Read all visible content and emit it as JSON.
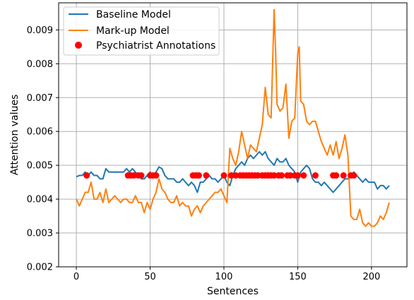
{
  "chart_data": {
    "type": "line",
    "title": "",
    "xlabel": "Sentences",
    "ylabel": "Attention values",
    "xlim": [
      -12,
      224
    ],
    "ylim": [
      0.002,
      0.0098
    ],
    "xticks": [
      0,
      50,
      100,
      150,
      200
    ],
    "xtick_labels": [
      "0",
      "50",
      "100",
      "150",
      "200"
    ],
    "yticks": [
      0.002,
      0.003,
      0.004,
      0.005,
      0.006,
      0.007,
      0.008,
      0.009
    ],
    "ytick_labels": [
      "0.002",
      "0.003",
      "0.004",
      "0.005",
      "0.006",
      "0.007",
      "0.008",
      "0.009"
    ],
    "grid": true,
    "legend_position": "upper-left",
    "series": [
      {
        "name": "Baseline Model",
        "type": "line",
        "color": "#1f77b4",
        "x": [
          0,
          2,
          4,
          6,
          8,
          10,
          12,
          14,
          16,
          18,
          20,
          22,
          24,
          26,
          28,
          30,
          32,
          34,
          36,
          38,
          40,
          42,
          44,
          46,
          48,
          50,
          52,
          54,
          56,
          58,
          60,
          62,
          64,
          66,
          68,
          70,
          72,
          74,
          76,
          78,
          80,
          82,
          84,
          86,
          88,
          90,
          92,
          94,
          96,
          98,
          100,
          102,
          104,
          106,
          108,
          110,
          112,
          114,
          116,
          118,
          120,
          122,
          124,
          126,
          128,
          130,
          132,
          134,
          136,
          138,
          140,
          142,
          144,
          146,
          148,
          150,
          152,
          154,
          156,
          158,
          160,
          162,
          164,
          166,
          168,
          170,
          172,
          174,
          176,
          178,
          180,
          182,
          184,
          186,
          188,
          190,
          192,
          194,
          196,
          198,
          200,
          202,
          204,
          206,
          208,
          210,
          212
        ],
        "y": [
          0.00466,
          0.0047,
          0.0047,
          0.0048,
          0.0047,
          0.0048,
          0.0047,
          0.0047,
          0.0046,
          0.0046,
          0.0049,
          0.0048,
          0.0048,
          0.0048,
          0.0048,
          0.0048,
          0.0048,
          0.0049,
          0.0048,
          0.0049,
          0.0048,
          0.0047,
          0.0046,
          0.0046,
          0.0047,
          0.0048,
          0.0047,
          0.0048,
          0.00495,
          0.0049,
          0.0047,
          0.0046,
          0.0046,
          0.0046,
          0.0045,
          0.0045,
          0.0046,
          0.0045,
          0.0044,
          0.0045,
          0.0044,
          0.0042,
          0.0045,
          0.0045,
          0.0046,
          0.0047,
          0.0046,
          0.0046,
          0.0045,
          0.0046,
          0.0047,
          0.0045,
          0.0044,
          0.0047,
          0.0049,
          0.005,
          0.0051,
          0.005,
          0.0052,
          0.0053,
          0.0052,
          0.0053,
          0.0054,
          0.0053,
          0.0054,
          0.0052,
          0.0051,
          0.005,
          0.0052,
          0.0051,
          0.0051,
          0.0052,
          0.005,
          0.0049,
          0.0048,
          0.0045,
          0.0048,
          0.0049,
          0.005,
          0.0049,
          0.0046,
          0.0045,
          0.0045,
          0.0044,
          0.0045,
          0.0044,
          0.0043,
          0.0042,
          0.0043,
          0.0044,
          0.0045,
          0.0046,
          0.0046,
          0.0047,
          0.0048,
          0.0047,
          0.0046,
          0.0045,
          0.0046,
          0.0045,
          0.0045,
          0.0045,
          0.0043,
          0.0044,
          0.0044,
          0.0043,
          0.0044
        ]
      },
      {
        "name": "Mark-up Model",
        "type": "line",
        "color": "#ff7f0e",
        "x": [
          0,
          2,
          4,
          6,
          8,
          10,
          12,
          14,
          16,
          18,
          20,
          22,
          24,
          26,
          28,
          30,
          32,
          34,
          36,
          38,
          40,
          42,
          44,
          46,
          48,
          50,
          52,
          54,
          56,
          58,
          60,
          62,
          64,
          66,
          68,
          70,
          72,
          74,
          76,
          78,
          80,
          82,
          84,
          86,
          88,
          90,
          92,
          94,
          96,
          98,
          100,
          102,
          104,
          106,
          108,
          110,
          112,
          114,
          116,
          118,
          120,
          122,
          124,
          126,
          128,
          130,
          132,
          134,
          135,
          136,
          138,
          140,
          142,
          144,
          146,
          148,
          150,
          151,
          152,
          154,
          156,
          158,
          160,
          162,
          164,
          166,
          168,
          170,
          172,
          174,
          176,
          178,
          180,
          182,
          184,
          186,
          188,
          190,
          192,
          194,
          196,
          198,
          200,
          202,
          204,
          206,
          208,
          210,
          212
        ],
        "y": [
          0.004,
          0.0038,
          0.004,
          0.0042,
          0.0042,
          0.0045,
          0.004,
          0.004,
          0.0042,
          0.0039,
          0.0043,
          0.0039,
          0.004,
          0.0041,
          0.004,
          0.0039,
          0.004,
          0.004,
          0.0039,
          0.0039,
          0.0041,
          0.0039,
          0.0039,
          0.0036,
          0.0039,
          0.0037,
          0.004,
          0.0042,
          0.0046,
          0.0043,
          0.0042,
          0.004,
          0.0039,
          0.0039,
          0.0041,
          0.0038,
          0.0039,
          0.0038,
          0.0038,
          0.0035,
          0.0037,
          0.0038,
          0.0036,
          0.0038,
          0.0039,
          0.004,
          0.0041,
          0.0042,
          0.0042,
          0.0043,
          0.0041,
          0.0039,
          0.0055,
          0.0052,
          0.005,
          0.0054,
          0.006,
          0.0056,
          0.0052,
          0.0056,
          0.0055,
          0.0054,
          0.0058,
          0.0062,
          0.0073,
          0.0065,
          0.0064,
          0.0096,
          0.0084,
          0.0068,
          0.0066,
          0.0067,
          0.0074,
          0.0058,
          0.0063,
          0.0064,
          0.0083,
          0.0085,
          0.0069,
          0.0068,
          0.0063,
          0.0062,
          0.0063,
          0.0063,
          0.006,
          0.0057,
          0.0055,
          0.0053,
          0.0056,
          0.0053,
          0.0057,
          0.0052,
          0.0055,
          0.0059,
          0.0053,
          0.0035,
          0.0034,
          0.0034,
          0.0037,
          0.0033,
          0.0032,
          0.0033,
          0.0032,
          0.0032,
          0.0033,
          0.0035,
          0.0034,
          0.0036,
          0.0039
        ]
      },
      {
        "name": "Psychiatrist Annotations",
        "type": "scatter",
        "color": "#ff0000",
        "x": [
          7,
          35,
          37,
          39,
          42,
          44,
          50,
          52,
          54,
          79,
          81,
          83,
          88,
          100,
          105,
          108,
          111,
          113,
          115,
          117,
          119,
          121,
          123,
          126,
          128,
          130,
          132,
          134,
          137,
          139,
          143,
          145,
          148,
          150,
          154,
          162,
          174,
          176,
          181,
          186,
          188
        ],
        "y": [
          0.0047,
          0.0047,
          0.0047,
          0.0047,
          0.0047,
          0.0047,
          0.0047,
          0.0047,
          0.0047,
          0.0047,
          0.0047,
          0.0047,
          0.0047,
          0.0047,
          0.0047,
          0.0047,
          0.0047,
          0.0047,
          0.0047,
          0.0047,
          0.0047,
          0.0047,
          0.0047,
          0.0047,
          0.0047,
          0.0047,
          0.0047,
          0.0047,
          0.0047,
          0.0047,
          0.0047,
          0.0047,
          0.0047,
          0.0047,
          0.0047,
          0.0047,
          0.0047,
          0.0047,
          0.0047,
          0.0047,
          0.0047
        ]
      }
    ]
  }
}
